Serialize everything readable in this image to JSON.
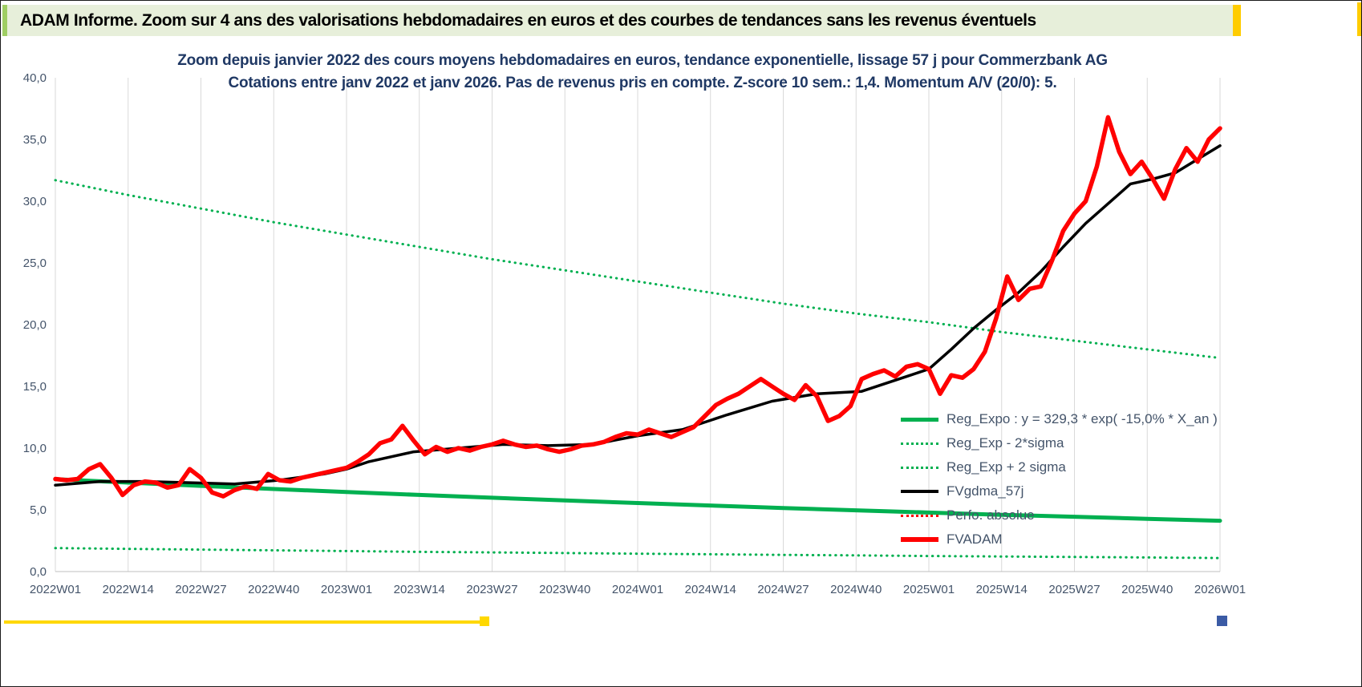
{
  "header": {
    "title": "ADAM Informe. Zoom sur 4 ans des valorisations hebdomadaires en euros et des courbes de tendances sans les revenus éventuels"
  },
  "colors": {
    "header_bg": "#e7efda",
    "green": "#00b050",
    "red": "#ff0000",
    "black": "#000000",
    "title_text": "#1f3864",
    "axis_text": "#44546a",
    "accent_yellow": "#ffcc00",
    "accent_blue": "#3b5ba5"
  },
  "chart_data": {
    "type": "line",
    "title": "Zoom depuis janvier 2022 des cours moyens hebdomadaires en euros, tendance exponentielle, lissage 57 j pour Commerzbank AG",
    "subtitle": "Cotations entre janv 2022 et janv 2026. Pas de revenus pris en compte. Z-score 10 sem.: 1,4. Momentum A/V (20/0): 5.",
    "grid": "vertical-only",
    "legend_position": "inside-bottom-right",
    "x_axis": {
      "unit": "ISO week",
      "min": 0,
      "max": 208,
      "ticks": [
        {
          "week": 0,
          "label": "2022W01"
        },
        {
          "week": 13,
          "label": "2022W14"
        },
        {
          "week": 26,
          "label": "2022W27"
        },
        {
          "week": 39,
          "label": "2022W40"
        },
        {
          "week": 52,
          "label": "2023W01"
        },
        {
          "week": 65,
          "label": "2023W14"
        },
        {
          "week": 78,
          "label": "2023W27"
        },
        {
          "week": 91,
          "label": "2023W40"
        },
        {
          "week": 104,
          "label": "2024W01"
        },
        {
          "week": 117,
          "label": "2024W14"
        },
        {
          "week": 130,
          "label": "2024W27"
        },
        {
          "week": 143,
          "label": "2024W40"
        },
        {
          "week": 156,
          "label": "2025W01"
        },
        {
          "week": 169,
          "label": "2025W14"
        },
        {
          "week": 182,
          "label": "2025W27"
        },
        {
          "week": 195,
          "label": "2025W40"
        },
        {
          "week": 208,
          "label": "2026W01"
        }
      ]
    },
    "y_axis": {
      "min": 0,
      "max": 40,
      "tick_step": 5,
      "ticks": [
        {
          "value": 0,
          "label": "0,0"
        },
        {
          "value": 5,
          "label": "5,0"
        },
        {
          "value": 10,
          "label": "10,0"
        },
        {
          "value": 15,
          "label": "15,0"
        },
        {
          "value": 20,
          "label": "20,0"
        },
        {
          "value": 25,
          "label": "25,0"
        },
        {
          "value": 30,
          "label": "30,0"
        },
        {
          "value": 35,
          "label": "35,0"
        },
        {
          "value": 40,
          "label": "40,0"
        }
      ]
    },
    "series": [
      {
        "id": "reg_expo",
        "label": "Reg_Expo : y = 329,3 * exp( -15,0% *  X_an )",
        "color": "#00b050",
        "style": "solid",
        "width": 5,
        "points": [
          [
            0,
            7.48
          ],
          [
            13,
            7.21
          ],
          [
            26,
            6.94
          ],
          [
            39,
            6.69
          ],
          [
            52,
            6.44
          ],
          [
            65,
            6.21
          ],
          [
            78,
            5.98
          ],
          [
            91,
            5.76
          ],
          [
            104,
            5.55
          ],
          [
            117,
            5.35
          ],
          [
            130,
            5.15
          ],
          [
            143,
            4.96
          ],
          [
            156,
            4.78
          ],
          [
            169,
            4.6
          ],
          [
            182,
            4.44
          ],
          [
            195,
            4.27
          ],
          [
            208,
            4.12
          ]
        ]
      },
      {
        "id": "reg_exp_minus_2sigma",
        "label": "Reg_Exp - 2*sigma",
        "color": "#00b050",
        "style": "dotted",
        "width": 3,
        "points": [
          [
            0,
            1.9
          ],
          [
            13,
            1.84
          ],
          [
            26,
            1.78
          ],
          [
            39,
            1.72
          ],
          [
            52,
            1.66
          ],
          [
            65,
            1.6
          ],
          [
            78,
            1.55
          ],
          [
            91,
            1.5
          ],
          [
            104,
            1.45
          ],
          [
            117,
            1.4
          ],
          [
            130,
            1.35
          ],
          [
            143,
            1.31
          ],
          [
            156,
            1.26
          ],
          [
            169,
            1.22
          ],
          [
            182,
            1.18
          ],
          [
            195,
            1.14
          ],
          [
            208,
            1.1
          ]
        ]
      },
      {
        "id": "reg_exp_plus_2sigma",
        "label": "Reg_Exp + 2 sigma",
        "color": "#00b050",
        "style": "dotted",
        "width": 3,
        "points": [
          [
            0,
            31.7
          ],
          [
            13,
            30.5
          ],
          [
            26,
            29.4
          ],
          [
            39,
            28.3
          ],
          [
            52,
            27.3
          ],
          [
            65,
            26.3
          ],
          [
            78,
            25.3
          ],
          [
            91,
            24.4
          ],
          [
            104,
            23.5
          ],
          [
            117,
            22.6
          ],
          [
            130,
            21.7
          ],
          [
            143,
            20.9
          ],
          [
            156,
            20.2
          ],
          [
            169,
            19.4
          ],
          [
            182,
            18.7
          ],
          [
            195,
            18.0
          ],
          [
            208,
            17.3
          ]
        ]
      },
      {
        "id": "fvgdma_57j",
        "label": "FVgdma_57j",
        "color": "#000000",
        "style": "solid",
        "width": 3.5,
        "points": [
          [
            0,
            7.0
          ],
          [
            8,
            7.3
          ],
          [
            16,
            7.3
          ],
          [
            24,
            7.2
          ],
          [
            32,
            7.1
          ],
          [
            40,
            7.4
          ],
          [
            48,
            7.9
          ],
          [
            52,
            8.3
          ],
          [
            56,
            8.9
          ],
          [
            64,
            9.7
          ],
          [
            72,
            10.0
          ],
          [
            80,
            10.3
          ],
          [
            88,
            10.2
          ],
          [
            96,
            10.3
          ],
          [
            104,
            11.0
          ],
          [
            112,
            11.5
          ],
          [
            120,
            12.7
          ],
          [
            128,
            13.8
          ],
          [
            136,
            14.4
          ],
          [
            144,
            14.6
          ],
          [
            152,
            15.8
          ],
          [
            156,
            16.4
          ],
          [
            160,
            18.0
          ],
          [
            164,
            19.7
          ],
          [
            168,
            21.2
          ],
          [
            172,
            22.6
          ],
          [
            176,
            24.3
          ],
          [
            180,
            26.3
          ],
          [
            184,
            28.2
          ],
          [
            188,
            29.8
          ],
          [
            192,
            31.4
          ],
          [
            196,
            31.8
          ],
          [
            200,
            32.3
          ],
          [
            204,
            33.4
          ],
          [
            208,
            34.5
          ]
        ]
      },
      {
        "id": "perfo_absolue",
        "label": "Perfo. absolue",
        "color": "#ff0000",
        "style": "dotted",
        "width": 3,
        "ref": "fvadam"
      },
      {
        "id": "fvadam",
        "label": "FVADAM",
        "color": "#ff0000",
        "style": "solid",
        "width": 5.5,
        "points": [
          [
            0,
            7.5
          ],
          [
            2,
            7.4
          ],
          [
            4,
            7.5
          ],
          [
            6,
            8.3
          ],
          [
            8,
            8.7
          ],
          [
            10,
            7.6
          ],
          [
            12,
            6.2
          ],
          [
            14,
            7.0
          ],
          [
            16,
            7.3
          ],
          [
            18,
            7.2
          ],
          [
            20,
            6.8
          ],
          [
            22,
            7.0
          ],
          [
            24,
            8.3
          ],
          [
            26,
            7.6
          ],
          [
            28,
            6.4
          ],
          [
            30,
            6.1
          ],
          [
            32,
            6.6
          ],
          [
            34,
            6.9
          ],
          [
            36,
            6.7
          ],
          [
            38,
            7.9
          ],
          [
            40,
            7.4
          ],
          [
            42,
            7.3
          ],
          [
            44,
            7.6
          ],
          [
            46,
            7.8
          ],
          [
            48,
            8.0
          ],
          [
            50,
            8.2
          ],
          [
            52,
            8.4
          ],
          [
            54,
            8.9
          ],
          [
            56,
            9.5
          ],
          [
            58,
            10.4
          ],
          [
            60,
            10.7
          ],
          [
            62,
            11.8
          ],
          [
            64,
            10.6
          ],
          [
            66,
            9.5
          ],
          [
            68,
            10.1
          ],
          [
            70,
            9.7
          ],
          [
            72,
            10.0
          ],
          [
            74,
            9.8
          ],
          [
            76,
            10.1
          ],
          [
            78,
            10.3
          ],
          [
            80,
            10.6
          ],
          [
            82,
            10.3
          ],
          [
            84,
            10.1
          ],
          [
            86,
            10.2
          ],
          [
            88,
            9.9
          ],
          [
            90,
            9.7
          ],
          [
            92,
            9.9
          ],
          [
            94,
            10.2
          ],
          [
            96,
            10.3
          ],
          [
            98,
            10.5
          ],
          [
            100,
            10.9
          ],
          [
            102,
            11.2
          ],
          [
            104,
            11.1
          ],
          [
            106,
            11.5
          ],
          [
            108,
            11.2
          ],
          [
            110,
            10.9
          ],
          [
            112,
            11.3
          ],
          [
            114,
            11.7
          ],
          [
            116,
            12.6
          ],
          [
            118,
            13.5
          ],
          [
            120,
            14.0
          ],
          [
            122,
            14.4
          ],
          [
            124,
            15.0
          ],
          [
            126,
            15.6
          ],
          [
            128,
            15.0
          ],
          [
            130,
            14.4
          ],
          [
            132,
            13.9
          ],
          [
            134,
            15.1
          ],
          [
            136,
            14.2
          ],
          [
            138,
            12.2
          ],
          [
            140,
            12.6
          ],
          [
            142,
            13.4
          ],
          [
            144,
            15.6
          ],
          [
            146,
            16.0
          ],
          [
            148,
            16.3
          ],
          [
            150,
            15.8
          ],
          [
            152,
            16.6
          ],
          [
            154,
            16.8
          ],
          [
            156,
            16.4
          ],
          [
            158,
            14.4
          ],
          [
            160,
            15.9
          ],
          [
            162,
            15.7
          ],
          [
            164,
            16.4
          ],
          [
            166,
            17.8
          ],
          [
            168,
            20.5
          ],
          [
            170,
            23.9
          ],
          [
            172,
            22.0
          ],
          [
            174,
            22.9
          ],
          [
            176,
            23.1
          ],
          [
            178,
            25.2
          ],
          [
            180,
            27.6
          ],
          [
            182,
            29.0
          ],
          [
            184,
            30.0
          ],
          [
            186,
            32.8
          ],
          [
            188,
            36.8
          ],
          [
            190,
            34.0
          ],
          [
            192,
            32.2
          ],
          [
            194,
            33.2
          ],
          [
            196,
            31.8
          ],
          [
            198,
            30.2
          ],
          [
            200,
            32.6
          ],
          [
            202,
            34.3
          ],
          [
            204,
            33.2
          ],
          [
            206,
            35.0
          ],
          [
            208,
            35.9
          ]
        ]
      }
    ]
  }
}
